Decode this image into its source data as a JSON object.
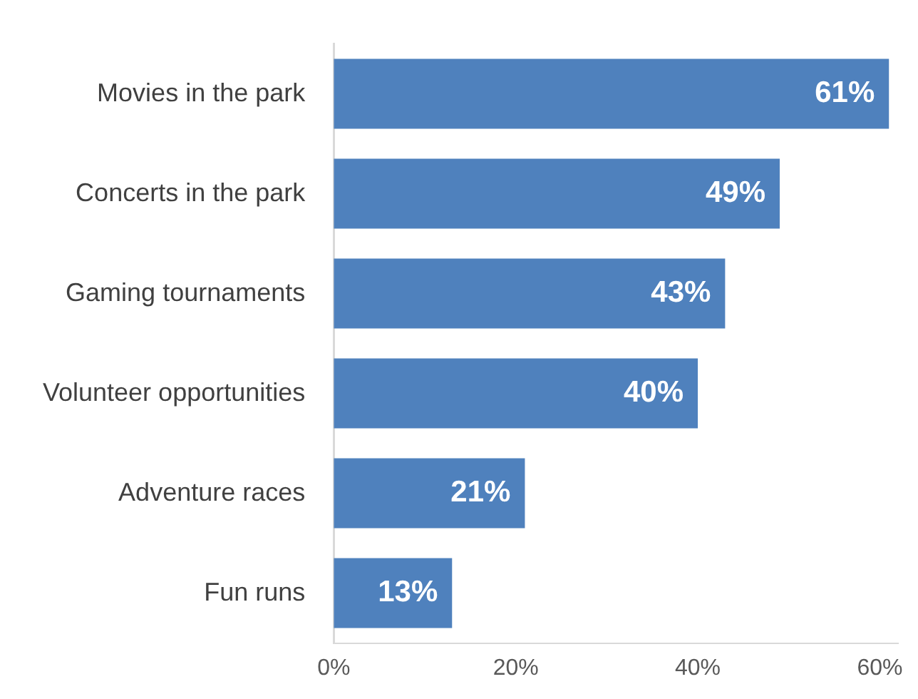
{
  "chart_data": {
    "type": "bar",
    "orientation": "horizontal",
    "categories": [
      "Movies in the park",
      "Concerts in the park",
      "Gaming tournaments",
      "Volunteer opportunities",
      "Adventure races",
      "Fun runs"
    ],
    "values": [
      61,
      49,
      43,
      40,
      21,
      13
    ],
    "value_labels": [
      "61%",
      "49%",
      "43%",
      "40%",
      "21%",
      "13%"
    ],
    "color": "#4f81bd",
    "xlim": [
      0,
      62
    ],
    "xticks": [
      {
        "value": 0,
        "label": "0%"
      },
      {
        "value": 20,
        "label": "20%"
      },
      {
        "value": 40,
        "label": "40%"
      },
      {
        "value": 60,
        "label": "60%"
      }
    ],
    "grid": false,
    "legend": false
  }
}
